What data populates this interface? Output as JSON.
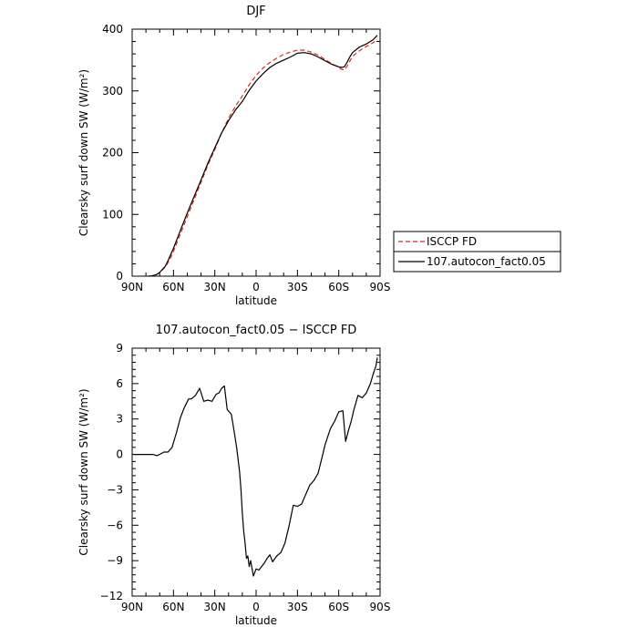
{
  "chart_data": [
    {
      "type": "line",
      "title": "DJF",
      "xlabel": "latitude",
      "ylabel": "Clearsky surf down SW (W/m²)",
      "x_tick_labels": [
        "90N",
        "60N",
        "30N",
        "0",
        "30S",
        "60S",
        "90S"
      ],
      "x_tick_values": [
        90,
        60,
        30,
        0,
        -30,
        -60,
        -90
      ],
      "xlim": [
        90,
        -90
      ],
      "ylim": [
        0,
        400
      ],
      "y_ticks": [
        0,
        100,
        200,
        300,
        400
      ],
      "y_tick_labels": [
        "0",
        "100",
        "200",
        "300",
        "400"
      ],
      "legend_position": "right",
      "series": [
        {
          "name": "ISCCP FD",
          "color": "#e8281e",
          "dash": "dashed",
          "x": [
            78,
            76,
            74,
            72,
            70,
            68,
            66,
            64,
            62,
            60,
            55,
            50,
            45,
            40,
            35,
            30,
            25,
            20,
            15,
            10,
            5,
            0,
            -5,
            -10,
            -15,
            -20,
            -25,
            -30,
            -35,
            -40,
            -45,
            -50,
            -55,
            -60,
            -62,
            -64,
            -66,
            -68,
            -70,
            -75,
            -80,
            -85,
            -88
          ],
          "y": [
            0,
            0.5,
            1.5,
            3,
            6,
            10,
            15,
            22,
            30,
            40,
            68,
            96,
            124,
            152,
            180,
            205,
            232,
            256,
            275,
            292,
            310,
            325,
            337,
            346,
            353,
            359,
            363,
            366,
            366,
            363,
            358,
            351,
            344,
            338,
            335,
            334,
            340,
            348,
            356,
            365,
            372,
            378,
            383
          ]
        },
        {
          "name": "107.autocon_fact0.05",
          "color": "#000000",
          "dash": "solid",
          "x": [
            78,
            76,
            74,
            72,
            70,
            68,
            66,
            64,
            62,
            60,
            55,
            50,
            45,
            40,
            35,
            30,
            25,
            20,
            15,
            10,
            5,
            0,
            -5,
            -10,
            -15,
            -20,
            -25,
            -30,
            -35,
            -40,
            -45,
            -50,
            -55,
            -60,
            -62,
            -64,
            -66,
            -68,
            -70,
            -75,
            -80,
            -85,
            -88
          ],
          "y": [
            0,
            0.5,
            1.5,
            3,
            6,
            11,
            16,
            25,
            35,
            45,
            74,
            102,
            129,
            156,
            183,
            208,
            232,
            252,
            269,
            283,
            301,
            316,
            328,
            338,
            345,
            350,
            355,
            361,
            362,
            360,
            355,
            349,
            343,
            339,
            338,
            339,
            346,
            355,
            362,
            371,
            376,
            383,
            390
          ]
        }
      ]
    },
    {
      "type": "line",
      "title": "107.autocon_fact0.05 − ISCCP FD",
      "xlabel": "latitude",
      "ylabel": "Clearsky surf down SW (W/m²)",
      "x_tick_labels": [
        "90N",
        "60N",
        "30N",
        "0",
        "30S",
        "60S",
        "90S"
      ],
      "x_tick_values": [
        90,
        60,
        30,
        0,
        -30,
        -60,
        -90
      ],
      "xlim": [
        90,
        -90
      ],
      "ylim": [
        -12,
        9
      ],
      "y_ticks": [
        -12,
        -9,
        -6,
        -3,
        0,
        3,
        6,
        9
      ],
      "y_tick_labels": [
        "−12",
        "−9",
        "−6",
        "−3",
        "0",
        "3",
        "6",
        "9"
      ],
      "series": [
        {
          "name": "",
          "color": "#000000",
          "dash": "solid",
          "x": [
            89,
            85,
            80,
            75,
            72,
            70,
            67,
            64,
            61,
            58,
            55,
            52,
            49,
            47,
            44,
            41,
            38,
            35,
            32,
            29,
            27,
            25,
            23,
            21,
            18,
            16,
            14,
            12,
            11,
            10,
            9,
            8,
            7,
            6,
            5,
            4,
            2,
            0,
            -2,
            -4,
            -6,
            -8,
            -10,
            -12,
            -15,
            -18,
            -21,
            -24,
            -27,
            -30,
            -33,
            -36,
            -39,
            -42,
            -45,
            -48,
            -50,
            -52,
            -54,
            -57,
            -60,
            -63,
            -65,
            -67,
            -69,
            -71,
            -74,
            -77,
            -80,
            -83,
            -85,
            -87,
            -88
          ],
          "y": [
            0,
            0,
            0,
            0,
            -0.1,
            0,
            0.2,
            0.2,
            0.6,
            1.8,
            3.1,
            4,
            4.7,
            4.7,
            5,
            5.6,
            4.5,
            4.6,
            4.5,
            5.1,
            5.2,
            5.6,
            5.8,
            3.8,
            3.4,
            2,
            0.5,
            -1.5,
            -3,
            -5,
            -6.5,
            -7.5,
            -8.8,
            -8.6,
            -9.5,
            -9,
            -10.3,
            -9.7,
            -9.8,
            -9.5,
            -9.2,
            -8.8,
            -8.5,
            -9.1,
            -8.6,
            -8.3,
            -7.5,
            -6,
            -4.3,
            -4.4,
            -4.2,
            -3.4,
            -2.6,
            -2.2,
            -1.6,
            -0.2,
            0.8,
            1.5,
            2.2,
            2.8,
            3.6,
            3.7,
            1.1,
            2,
            2.8,
            3.8,
            5,
            4.8,
            5.2,
            6,
            6.8,
            7.5,
            8.2
          ]
        }
      ]
    }
  ]
}
